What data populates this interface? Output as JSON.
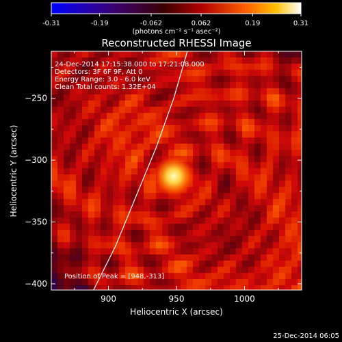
{
  "colorbar": {
    "ticks": [
      "-0.31",
      "-0.19",
      "-0.062",
      "0.062",
      "0.19",
      "0.31"
    ],
    "tick_values": [
      -0.31,
      -0.19,
      -0.062,
      0.062,
      0.19,
      0.31
    ],
    "range": [
      -0.31,
      0.31
    ],
    "unit_label": "(photons cm⁻² s⁻¹ asec⁻²)"
  },
  "chart_data": {
    "type": "heatmap",
    "title": "Reconstructed RHESSI Image",
    "xlabel": "Heliocentric X (arcsec)",
    "ylabel": "Heliocentric Y (arcsec)",
    "xlim": [
      858,
      1042
    ],
    "ylim": [
      -405,
      -212
    ],
    "xticks": [
      900,
      950,
      1000
    ],
    "xtick_labels": [
      "900",
      "950",
      "1000"
    ],
    "yticks": [
      -250,
      -300,
      -350,
      -400
    ],
    "ytick_labels": [
      "−250",
      "−300",
      "−350",
      "−400"
    ],
    "peak": {
      "x": 948,
      "y": -313
    },
    "limb_curve": [
      [
        889,
        -405
      ],
      [
        905,
        -370
      ],
      [
        920,
        -330
      ],
      [
        935,
        -290
      ],
      [
        948,
        -250
      ],
      [
        958,
        -212
      ]
    ],
    "colormap": "hot",
    "annotations": [
      "24-Dec-2014 17:15:38.000 to 17:21:08.000",
      "Detectors: 3F 6F 9F, Att 0",
      "Energy Range: 3.0 - 6.0 keV",
      "Clean     Total counts: 1.32E+04"
    ],
    "peak_label": "Position of Peak = [948,-313]"
  },
  "footer": {
    "timestamp": "25-Dec-2014 06:05"
  }
}
